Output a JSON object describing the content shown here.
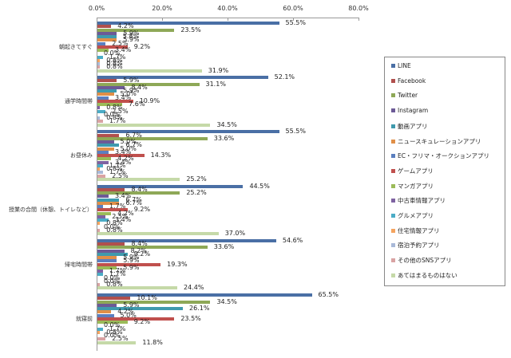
{
  "chart_data": {
    "type": "bar",
    "orientation": "horizontal",
    "title": "",
    "xlabel": "",
    "ylabel": "",
    "xlim": [
      0,
      80
    ],
    "x_ticks": [
      "0.0%",
      "20.0%",
      "40.0%",
      "60.0%",
      "80.0%"
    ],
    "grid": false,
    "legend_position": "right",
    "categories": [
      "朝起きてすぐ",
      "通学時間帯",
      "お昼休み",
      "授業の合間（休憩、トイレなど）",
      "帰宅時間帯",
      "就寝前"
    ],
    "series": [
      {
        "name": "LINE",
        "color": "#4a6fa5",
        "values": [
          55.5,
          52.1,
          55.5,
          44.5,
          54.6,
          65.5
        ]
      },
      {
        "name": "Facebook",
        "color": "#b0504d",
        "values": [
          4.2,
          5.9,
          6.7,
          8.4,
          8.4,
          10.1
        ]
      },
      {
        "name": "Twitter",
        "color": "#8ea857",
        "values": [
          23.5,
          31.1,
          33.6,
          25.2,
          33.6,
          34.5
        ]
      },
      {
        "name": "Instagram",
        "color": "#6c5a96",
        "values": [
          5.9,
          8.4,
          5.0,
          3.4,
          8.2,
          5.9
        ]
      },
      {
        "name": "動画アプリ",
        "color": "#3f9aad",
        "values": [
          5.8,
          5.9,
          6.7,
          6.7,
          9.2,
          26.1
        ]
      },
      {
        "name": "ニュースキュレーションアプリ",
        "color": "#e08f48",
        "values": [
          5.9,
          5.0,
          5.0,
          6.7,
          5.9,
          4.2
        ]
      },
      {
        "name": "EC・フリマ・オークションアプリ",
        "color": "#5b7fbf",
        "values": [
          2.5,
          3.4,
          3.4,
          1.7,
          5.9,
          5.0
        ]
      },
      {
        "name": "ゲームアプリ",
        "color": "#c0504d",
        "values": [
          9.2,
          10.9,
          14.3,
          9.2,
          19.3,
          23.5
        ]
      },
      {
        "name": "マンガアプリ",
        "color": "#9bbb59",
        "values": [
          3.4,
          7.6,
          4.2,
          4.2,
          5.9,
          9.2
        ]
      },
      {
        "name": "中古車情報アプリ",
        "color": "#7e62a1",
        "values": [
          0.0,
          0.8,
          3.4,
          2.5,
          1.7,
          0.0
        ]
      },
      {
        "name": "グルメアプリ",
        "color": "#4bacc6",
        "values": [
          1.7,
          2.5,
          1.7,
          3.4,
          1.7,
          1.7
        ]
      },
      {
        "name": "住宅情報アプリ",
        "color": "#f4a460",
        "values": [
          0.8,
          0.0,
          0.8,
          0.8,
          0.0,
          0.8
        ]
      },
      {
        "name": "宿泊予約アプリ",
        "color": "#a9b9d8",
        "values": [
          0.8,
          0.8,
          1.7,
          0.0,
          0.0,
          0.0
        ]
      },
      {
        "name": "その他のSNSアプリ",
        "color": "#d9a3a3",
        "values": [
          0.8,
          1.7,
          2.5,
          0.8,
          0.8,
          2.5
        ]
      },
      {
        "name": "あてはまるものはない",
        "color": "#c5d9a8",
        "values": [
          31.9,
          34.5,
          25.2,
          37.0,
          24.4,
          11.8
        ]
      }
    ]
  }
}
